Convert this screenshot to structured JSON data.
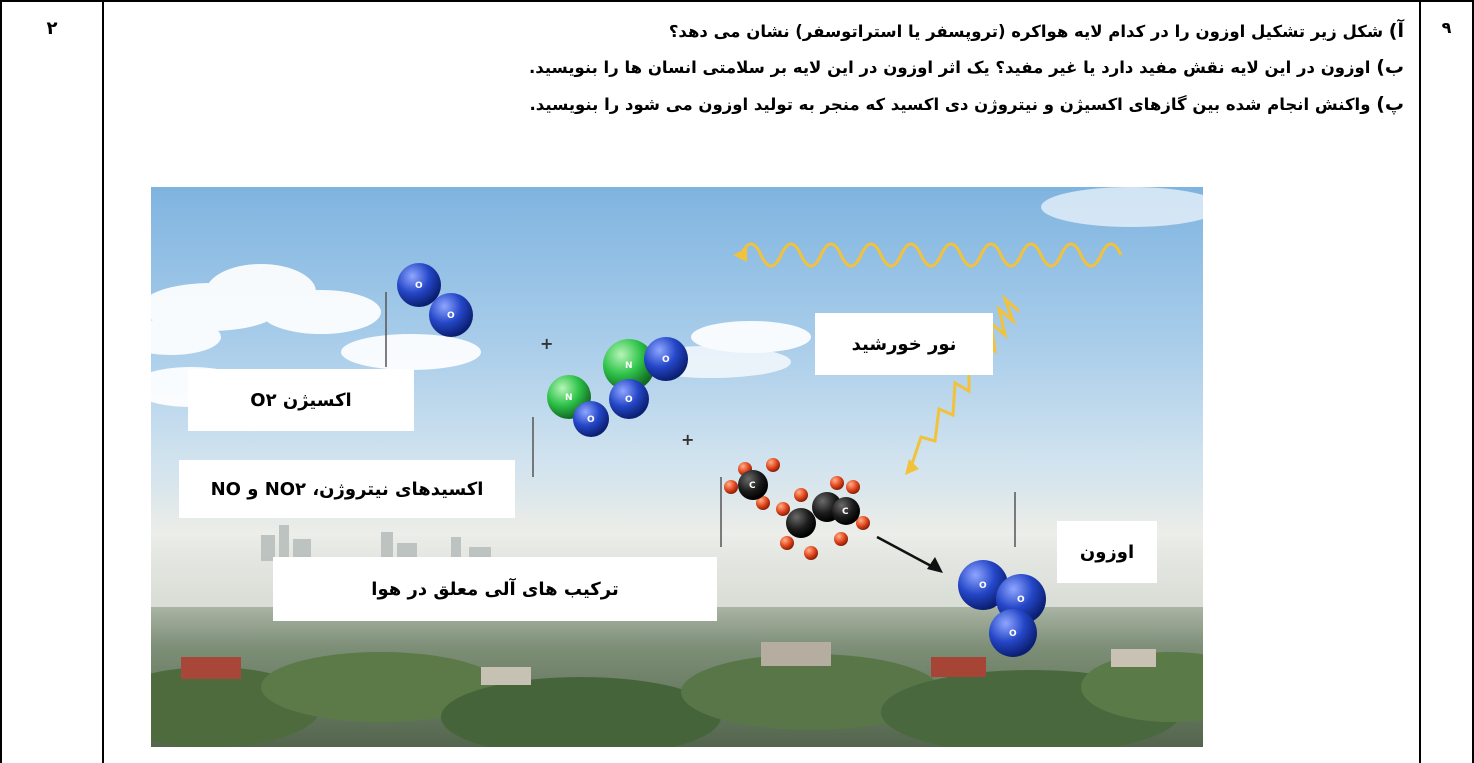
{
  "table": {
    "question_number": "۹",
    "score": "۲"
  },
  "question": {
    "part_a_tag": "آ)",
    "part_a_text": " شکل زیر تشکیل اوزون را در کدام لایه هواکره (تروپسفر یا استراتوسفر) نشان می دهد؟",
    "part_b_tag": "ب)",
    "part_b_text": " اوزون در این لایه نقش مفید دارد یا غیر مفید؟ یک اثر اوزون در این لایه بر سلامتی انسان ها را بنویسید.",
    "part_p_tag": "پ)",
    "part_p_text": " واکنش انجام شده بین گازهای اکسیژن و نیتروژن دی اکسید که منجر به تولید اوزون می شود را بنویسید."
  },
  "figure": {
    "labels": {
      "oxygen": "اکسیژن O۲",
      "nitrogen_oxides": "اکسیدهای نیتروژن، NO۲ و NO",
      "organic_compounds": "ترکیب های آلی معلق در هوا",
      "sunlight": "نور خورشید",
      "ozone": "اوزون"
    },
    "plus_sign": "+",
    "atom_letters": {
      "oxygen": "O",
      "nitrogen": "N",
      "carbon": "C"
    },
    "colors": {
      "oxygen_atom": "#2547c8",
      "nitrogen_atom": "#2fc34a",
      "carbon_atom": "#1b1b1b",
      "hydrogen_atom": "#e2461d",
      "sun_wave": "#f2c23a"
    }
  }
}
